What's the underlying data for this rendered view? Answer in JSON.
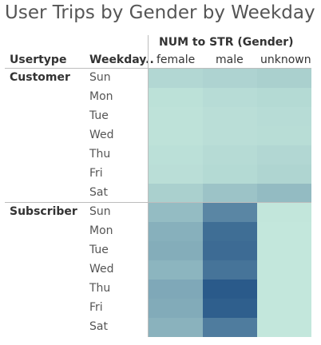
{
  "chart_data": {
    "type": "heatmap",
    "title": "User Trips by Gender by Weekday",
    "column_group_label": "NUM to STR (Gender)",
    "row_headers": [
      "Usertype",
      "Weekday.."
    ],
    "columns": [
      "female",
      "male",
      "unknown"
    ],
    "groups": [
      {
        "name": "Customer",
        "weekdays": [
          "Sun",
          "Mon",
          "Tue",
          "Wed",
          "Thu",
          "Fri",
          "Sat"
        ],
        "values": [
          [
            22,
            25,
            28
          ],
          [
            14,
            18,
            20
          ],
          [
            13,
            16,
            18
          ],
          [
            13,
            16,
            17
          ],
          [
            15,
            19,
            22
          ],
          [
            16,
            20,
            24
          ],
          [
            28,
            38,
            45
          ]
        ]
      },
      {
        "name": "Subscriber",
        "weekdays": [
          "Sun",
          "Mon",
          "Tue",
          "Wed",
          "Thu",
          "Fri",
          "Sat"
        ],
        "values": [
          [
            44,
            88,
            10
          ],
          [
            54,
            108,
            9
          ],
          [
            56,
            110,
            9
          ],
          [
            50,
            103,
            9
          ],
          [
            60,
            124,
            9
          ],
          [
            58,
            120,
            9
          ],
          [
            52,
            96,
            9
          ]
        ]
      }
    ],
    "color_scale": {
      "min": 9,
      "max": 124,
      "low": "#c3e7dc",
      "high": "#2a5a8a"
    }
  }
}
